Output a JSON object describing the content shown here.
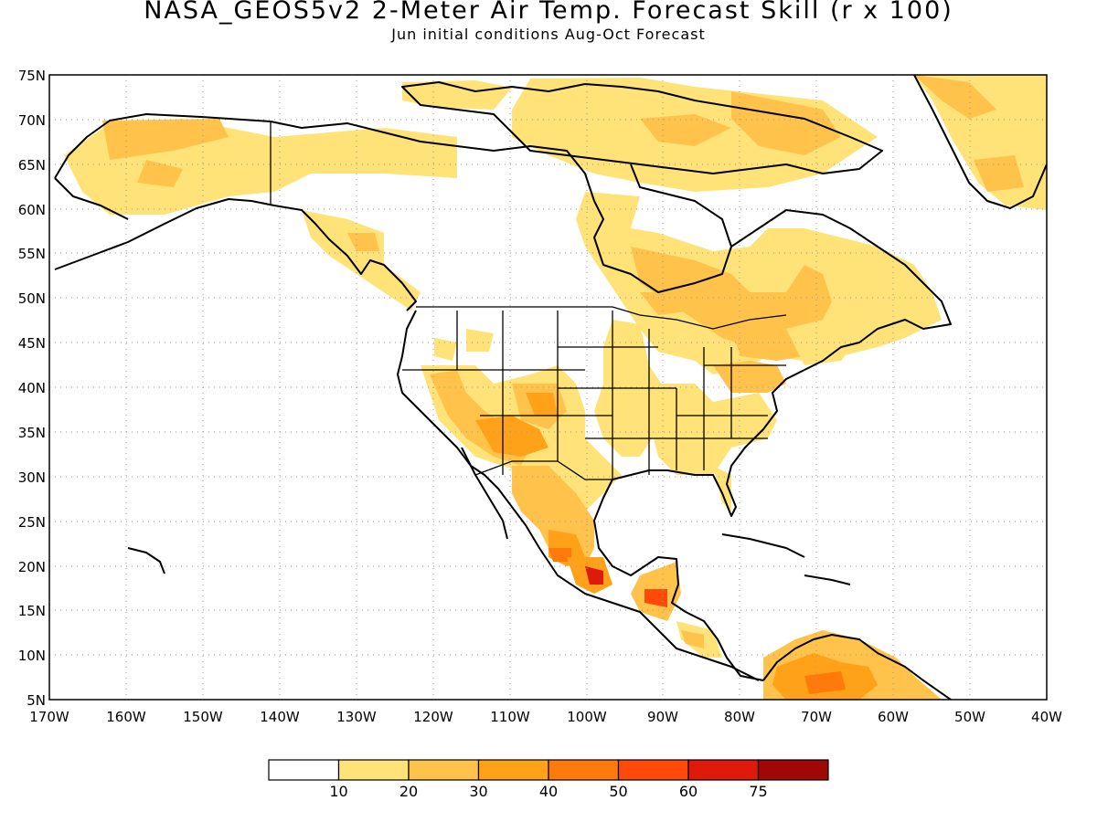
{
  "map": {
    "title": "NASA_GEOS5v2 2-Meter Air Temp. Forecast Skill (r x 100)",
    "subtitle": "Jun initial conditions  Aug-Oct Forecast",
    "lat_labels": [
      "75N",
      "70N",
      "65N",
      "60N",
      "55N",
      "50N",
      "45N",
      "40N",
      "35N",
      "30N",
      "25N",
      "20N",
      "15N",
      "10N",
      "5N"
    ],
    "lon_labels": [
      "170W",
      "160W",
      "150W",
      "140W",
      "130W",
      "120W",
      "110W",
      "100W",
      "90W",
      "80W",
      "70W",
      "60W",
      "50W",
      "40W"
    ]
  },
  "colorbar": {
    "labels": [
      "10",
      "20",
      "30",
      "40",
      "50",
      "60",
      "75"
    ],
    "colors": [
      "#ffffff",
      "#ffe278",
      "#ffc24a",
      "#ffa21a",
      "#ff7a0a",
      "#ff4a0a",
      "#e01a0a",
      "#a00808"
    ]
  }
}
